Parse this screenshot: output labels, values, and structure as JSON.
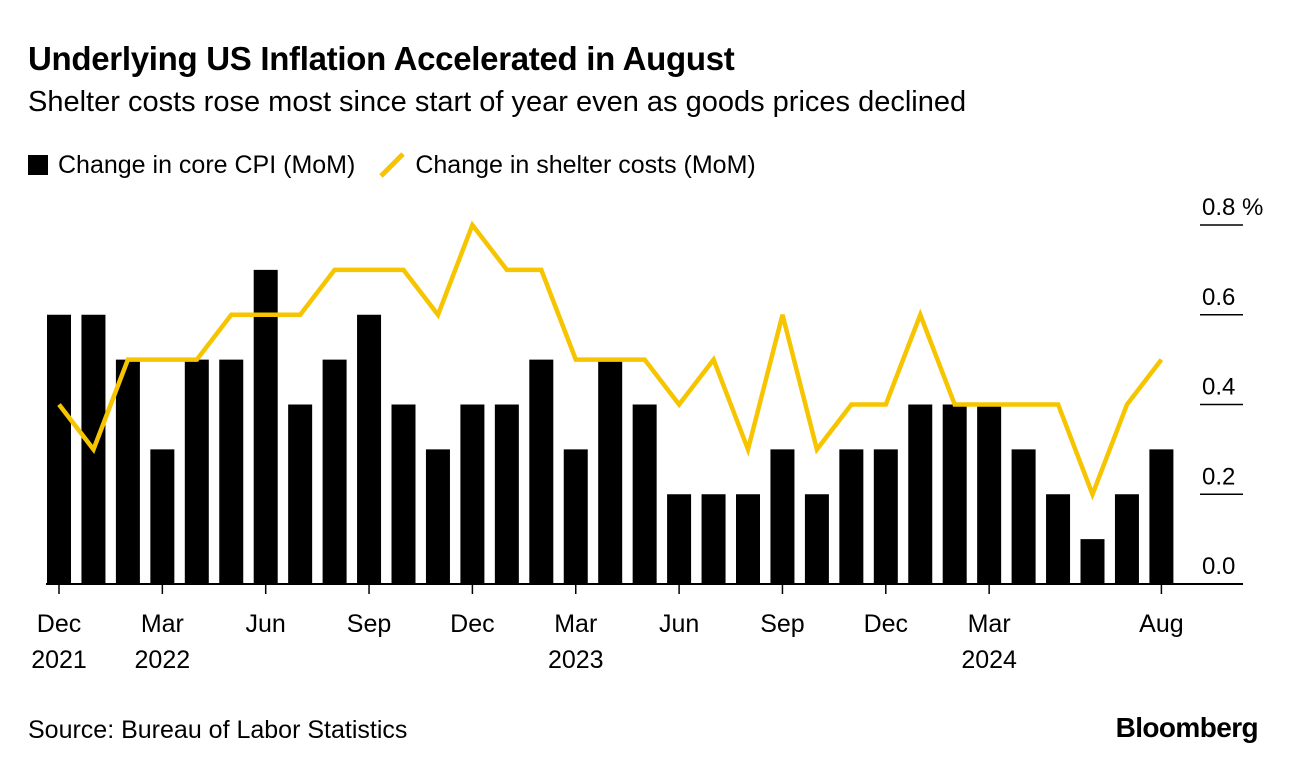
{
  "title": "Underlying US Inflation Accelerated in August",
  "subtitle": "Shelter costs rose most since start of year even as goods prices declined",
  "source": "Source: Bureau of Labor Statistics",
  "brand": "Bloomberg",
  "colors": {
    "bar": "#000000",
    "line": "#f6c500"
  },
  "chart_data": {
    "type": "bar",
    "ylim": [
      0,
      0.8
    ],
    "y_unit": "%",
    "y_ticks": [
      "0.0",
      "0.2",
      "0.4",
      "0.6",
      "0.8"
    ],
    "x_tick_labels": [
      {
        "index": 0,
        "month": "Dec",
        "year": "2021"
      },
      {
        "index": 3,
        "month": "Mar",
        "year": "2022"
      },
      {
        "index": 6,
        "month": "Jun",
        "year": ""
      },
      {
        "index": 9,
        "month": "Sep",
        "year": ""
      },
      {
        "index": 12,
        "month": "Dec",
        "year": ""
      },
      {
        "index": 15,
        "month": "Mar",
        "year": "2023"
      },
      {
        "index": 18,
        "month": "Jun",
        "year": ""
      },
      {
        "index": 21,
        "month": "Sep",
        "year": ""
      },
      {
        "index": 24,
        "month": "Dec",
        "year": ""
      },
      {
        "index": 27,
        "month": "Mar",
        "year": "2024"
      },
      {
        "index": 32,
        "month": "Aug",
        "year": ""
      }
    ],
    "x": [
      "2021-12",
      "2022-01",
      "2022-02",
      "2022-03",
      "2022-04",
      "2022-05",
      "2022-06",
      "2022-07",
      "2022-08",
      "2022-09",
      "2022-10",
      "2022-11",
      "2022-12",
      "2023-01",
      "2023-02",
      "2023-03",
      "2023-04",
      "2023-05",
      "2023-06",
      "2023-07",
      "2023-08",
      "2023-09",
      "2023-10",
      "2023-11",
      "2023-12",
      "2024-01",
      "2024-02",
      "2024-03",
      "2024-04",
      "2024-05",
      "2024-06",
      "2024-07",
      "2024-08"
    ],
    "series": [
      {
        "name": "Change in core CPI (MoM)",
        "kind": "bar",
        "values": [
          0.6,
          0.6,
          0.5,
          0.3,
          0.5,
          0.5,
          0.7,
          0.4,
          0.5,
          0.6,
          0.4,
          0.3,
          0.4,
          0.4,
          0.5,
          0.3,
          0.5,
          0.4,
          0.2,
          0.2,
          0.2,
          0.3,
          0.2,
          0.3,
          0.3,
          0.4,
          0.4,
          0.4,
          0.3,
          0.2,
          0.1,
          0.2,
          0.3
        ]
      },
      {
        "name": "Change in shelter costs (MoM)",
        "kind": "line",
        "values": [
          0.4,
          0.3,
          0.5,
          0.5,
          0.5,
          0.6,
          0.6,
          0.6,
          0.7,
          0.7,
          0.7,
          0.6,
          0.8,
          0.7,
          0.7,
          0.5,
          0.5,
          0.5,
          0.4,
          0.5,
          0.3,
          0.6,
          0.3,
          0.4,
          0.4,
          0.6,
          0.4,
          0.4,
          0.4,
          0.4,
          0.2,
          0.4,
          0.5
        ]
      }
    ]
  }
}
